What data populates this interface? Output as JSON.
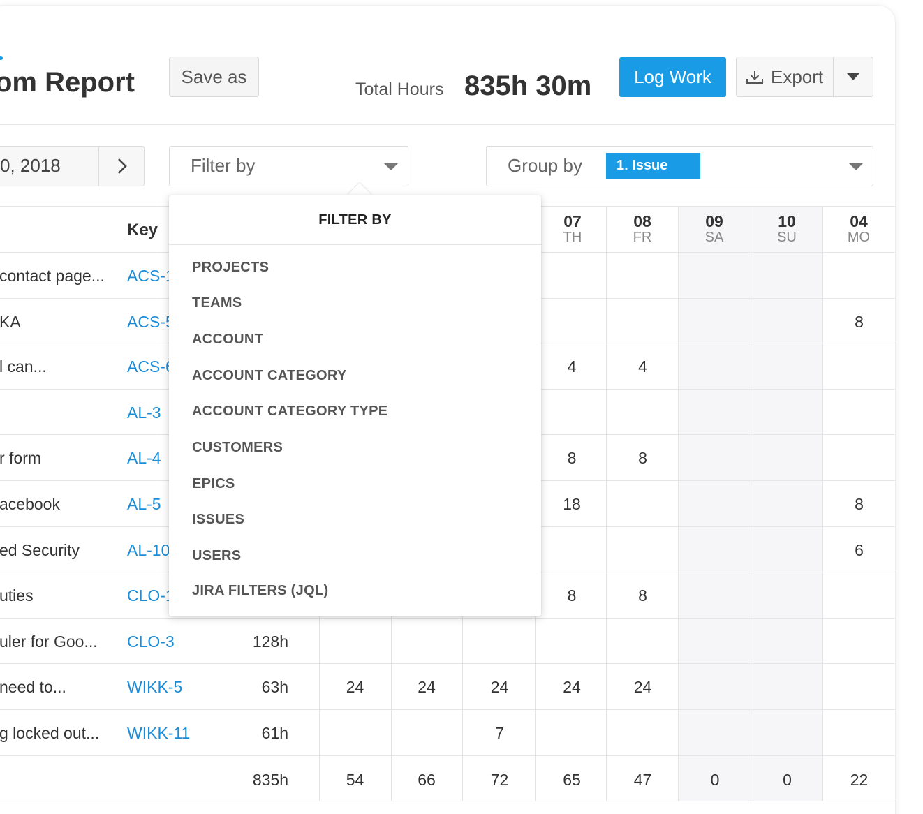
{
  "header": {
    "title": "om Report",
    "save_as_label": "Save as",
    "total_hours_label": "Total Hours",
    "total_hours_value": "835h 30m",
    "log_work_label": "Log Work",
    "export_label": "Export"
  },
  "controls": {
    "date_text": "0, 2018",
    "filter_placeholder": "Filter by",
    "group_by_label": "Group by",
    "group_by_badge": "1. Issue"
  },
  "table": {
    "key_header": "Key",
    "days": [
      {
        "num": "07",
        "name": "TH"
      },
      {
        "num": "08",
        "name": "FR"
      },
      {
        "num": "09",
        "name": "SA"
      },
      {
        "num": "10",
        "name": "SU"
      },
      {
        "num": "04",
        "name": "MO"
      }
    ],
    "rows": [
      {
        "summary": "contact page...",
        "key": "ACS-1",
        "hours": "",
        "c1": "",
        "c2": "",
        "c3": "",
        "c4": "",
        "c5": "",
        "c6": "",
        "c7": "",
        "c8": ""
      },
      {
        "summary": "KA",
        "key": "ACS-5",
        "hours": "",
        "c1": "",
        "c2": "",
        "c3": "",
        "c4": "",
        "c5": "",
        "c6": "",
        "c7": "",
        "c8": "8"
      },
      {
        "summary": "l can...",
        "key": "ACS-6",
        "hours": "",
        "c1": "",
        "c2": "",
        "c3": "",
        "c4": "4",
        "c5": "4",
        "c6": "",
        "c7": "",
        "c8": ""
      },
      {
        "summary": "",
        "key": "AL-3",
        "hours": "",
        "c1": "",
        "c2": "",
        "c3": "",
        "c4": "",
        "c5": "",
        "c6": "",
        "c7": "",
        "c8": ""
      },
      {
        "summary": "r form",
        "key": "AL-4",
        "hours": "",
        "c1": "",
        "c2": "",
        "c3": "",
        "c4": "8",
        "c5": "8",
        "c6": "",
        "c7": "",
        "c8": ""
      },
      {
        "summary": "acebook",
        "key": "AL-5",
        "hours": "",
        "c1": "",
        "c2": "",
        "c3": "",
        "c4": "18",
        "c5": "",
        "c6": "",
        "c7": "",
        "c8": "8"
      },
      {
        "summary": "ed Security",
        "key": "AL-10",
        "hours": "",
        "c1": "",
        "c2": "",
        "c3": "",
        "c4": "",
        "c5": "",
        "c6": "",
        "c7": "",
        "c8": "6"
      },
      {
        "summary": "uties",
        "key": "CLO-1",
        "hours": "",
        "c1": "",
        "c2": "",
        "c3": "",
        "c4": "8",
        "c5": "8",
        "c6": "",
        "c7": "",
        "c8": ""
      },
      {
        "summary": "uler for Goo...",
        "key": "CLO-3",
        "hours": "128h",
        "c1": "",
        "c2": "",
        "c3": "",
        "c4": "",
        "c5": "",
        "c6": "",
        "c7": "",
        "c8": ""
      },
      {
        "summary": "need to...",
        "key": "WIKK-5",
        "hours": "63h",
        "c1": "24",
        "c2": "24",
        "c3": "24",
        "c4": "24",
        "c5": "24",
        "c6": "",
        "c7": "",
        "c8": ""
      },
      {
        "summary": "g locked out...",
        "key": "WIKK-11",
        "hours": "61h",
        "c1": "",
        "c2": "",
        "c3": "7",
        "c4": "",
        "c5": "",
        "c6": "",
        "c7": "",
        "c8": ""
      }
    ],
    "totals": {
      "hours": "835h",
      "c1": "54",
      "c2": "66",
      "c3": "72",
      "c4": "65",
      "c5": "47",
      "c6": "0",
      "c7": "0",
      "c8": "22"
    }
  },
  "filter_dropdown": {
    "title": "FILTER BY",
    "items": [
      "PROJECTS",
      "TEAMS",
      "ACCOUNT",
      "ACCOUNT CATEGORY",
      "ACCOUNT CATEGORY TYPE",
      "CUSTOMERS",
      "EPICS",
      "ISSUES",
      "USERS",
      "JIRA FILTERS (JQL)"
    ]
  },
  "colors": {
    "accent": "#1a9be6",
    "link": "#1a8cd8",
    "weekend_bg": "#f6f6f8"
  },
  "icons": {
    "export": "download-icon",
    "export_menu": "caret-down-icon",
    "date_next": "chevron-right-icon",
    "filter": "caret-down-icon",
    "group": "caret-down-icon"
  }
}
